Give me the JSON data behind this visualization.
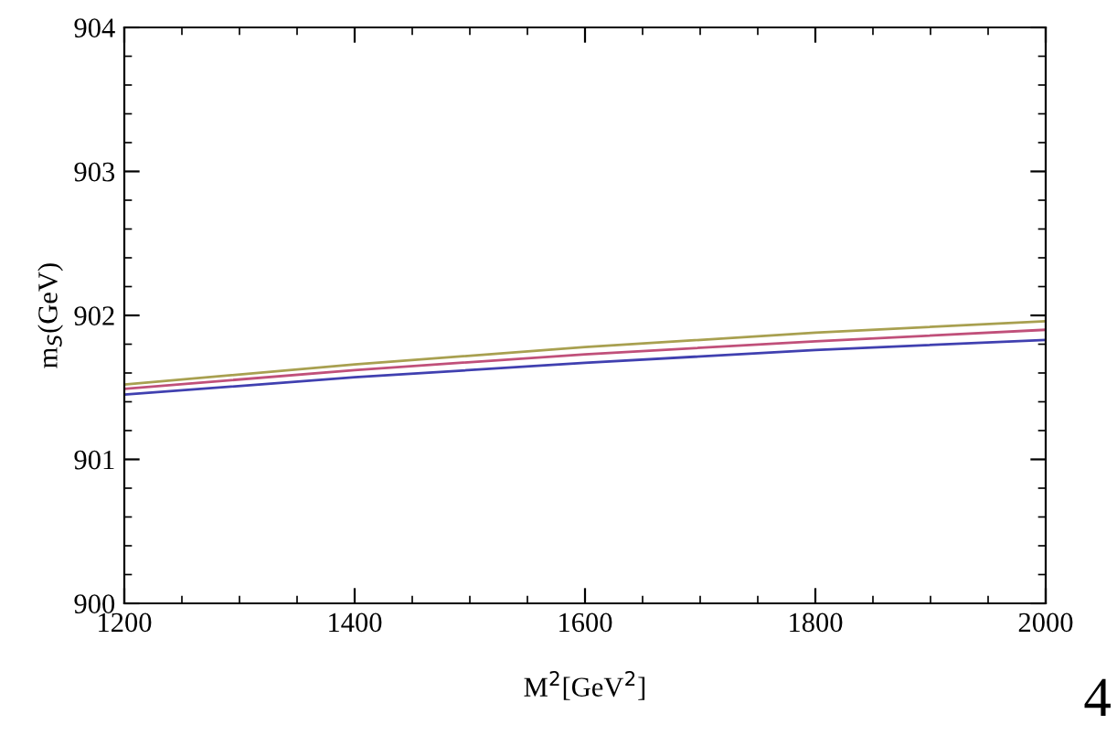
{
  "chart_data": {
    "type": "line",
    "xlabel": "M$^{2}$[GeV$^{2}$]",
    "ylabel": "m$_{S}$(GeV)",
    "x": [
      1200,
      1400,
      1600,
      1800,
      2000
    ],
    "series": [
      {
        "color": "#a8a050",
        "values": [
          901.52,
          901.66,
          901.78,
          901.88,
          901.96
        ]
      },
      {
        "color": "#c0507a",
        "values": [
          901.49,
          901.62,
          901.73,
          901.82,
          901.9
        ]
      },
      {
        "color": "#4040b0",
        "values": [
          901.45,
          901.57,
          901.67,
          901.76,
          901.83
        ]
      }
    ],
    "xlim": [
      1200,
      2000
    ],
    "xticks": [
      1200,
      1400,
      1600,
      1800,
      2000
    ],
    "ylim": [
      900,
      904
    ],
    "yticks": [
      900,
      901,
      902,
      903,
      904
    ],
    "grid": false,
    "legend": false,
    "marker": "none",
    "line_style": "solid",
    "annotations": [
      "4"
    ]
  }
}
